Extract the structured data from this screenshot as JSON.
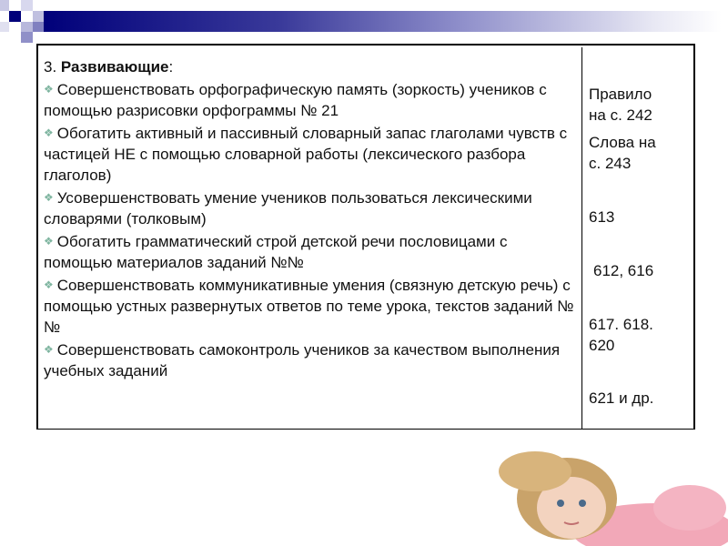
{
  "header": {
    "accent_color": "#00007a"
  },
  "table": {
    "heading_number": "3. ",
    "heading_bold": "Развивающие",
    "heading_colon": ":",
    "rows": [
      {
        "text": "Совершенствовать орфографическую  память (зоркость) учеников с помощью разрисовки орфограммы № 21",
        "ref_line1": "Правило",
        "ref_line2": "на с. 242"
      },
      {
        "text": "Обогатить активный и пассивный словарный запас глаголами чувств с частицей НЕ с помощью словарной работы (лексического разбора глаголов)",
        "ref_line1": "Слова на",
        "ref_line2": "с. 243"
      },
      {
        "text": "Усовершенствовать умение учеников пользоваться лексическими словарями (толковым)",
        "ref_line1": "613",
        "ref_line2": ""
      },
      {
        "text": "Обогатить грамматический строй детской речи пословицами с помощью материалов заданий №№",
        "ref_line1": "612, 616",
        "ref_line2": ""
      },
      {
        "text": "Совершенствовать коммуникативные умения (связную детскую речь) с помощью устных развернутых ответов по теме урока, текстов заданий №№",
        "ref_line1": "617. 618.",
        "ref_line2": "620"
      },
      {
        "text": "Совершенствовать самоконтроль учеников за качеством выполнения учебных заданий",
        "ref_line1": "621 и др.",
        "ref_line2": ""
      }
    ]
  },
  "photo": {
    "icon": "child-lying-photo"
  }
}
